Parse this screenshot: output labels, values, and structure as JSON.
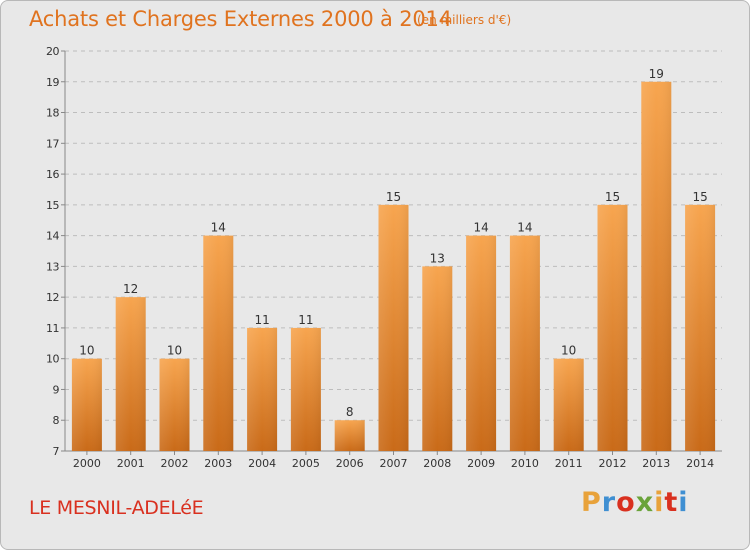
{
  "chart_data": {
    "type": "bar",
    "title": "Achats et Charges Externes 2000 à 2014",
    "subtitle": "(en milliers d'€)",
    "categories": [
      "2000",
      "2001",
      "2002",
      "2003",
      "2004",
      "2005",
      "2006",
      "2007",
      "2008",
      "2009",
      "2010",
      "2011",
      "2012",
      "2013",
      "2014"
    ],
    "values": [
      10,
      12,
      10,
      14,
      11,
      11,
      8,
      15,
      13,
      14,
      14,
      10,
      15,
      19,
      15
    ],
    "ylim": [
      7,
      20
    ],
    "yticks": [
      7,
      8,
      9,
      10,
      11,
      12,
      13,
      14,
      15,
      16,
      17,
      18,
      19,
      20
    ],
    "grid": true,
    "bar_color_top": "#f7a54f",
    "bar_color_bottom": "#c96a18"
  },
  "footer": {
    "city": "LE MESNIL-ADELéE",
    "brand": "Proxiti",
    "brand_colors": [
      "#e8a23a",
      "#3f8fd2",
      "#d9301f",
      "#6aa33a",
      "#e8a23a",
      "#d9301f",
      "#3f8fd2"
    ]
  }
}
